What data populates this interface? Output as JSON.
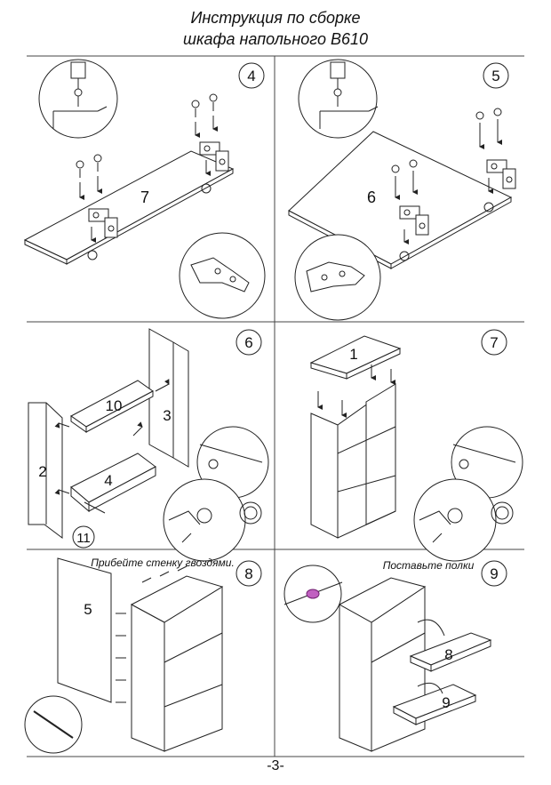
{
  "header": {
    "title_line1": "Инструкция по сборке",
    "title_line2": "шкафа напольного В610"
  },
  "steps": [
    {
      "number": "4",
      "part_label": "7"
    },
    {
      "number": "5",
      "part_label": "6"
    },
    {
      "number": "6",
      "part_labels": [
        "10",
        "3",
        "2",
        "4",
        "11"
      ]
    },
    {
      "number": "7",
      "part_label": "1"
    },
    {
      "number": "8",
      "caption": "Прибейте стенку гвоздями.",
      "part_label": "5"
    },
    {
      "number": "9",
      "caption": "Поставьте полки",
      "part_labels": [
        "8",
        "9"
      ]
    }
  ],
  "footer": {
    "page": "-3-"
  },
  "colors": {
    "line": "#222222",
    "grid": "#444444",
    "accent": "#c060c0"
  }
}
